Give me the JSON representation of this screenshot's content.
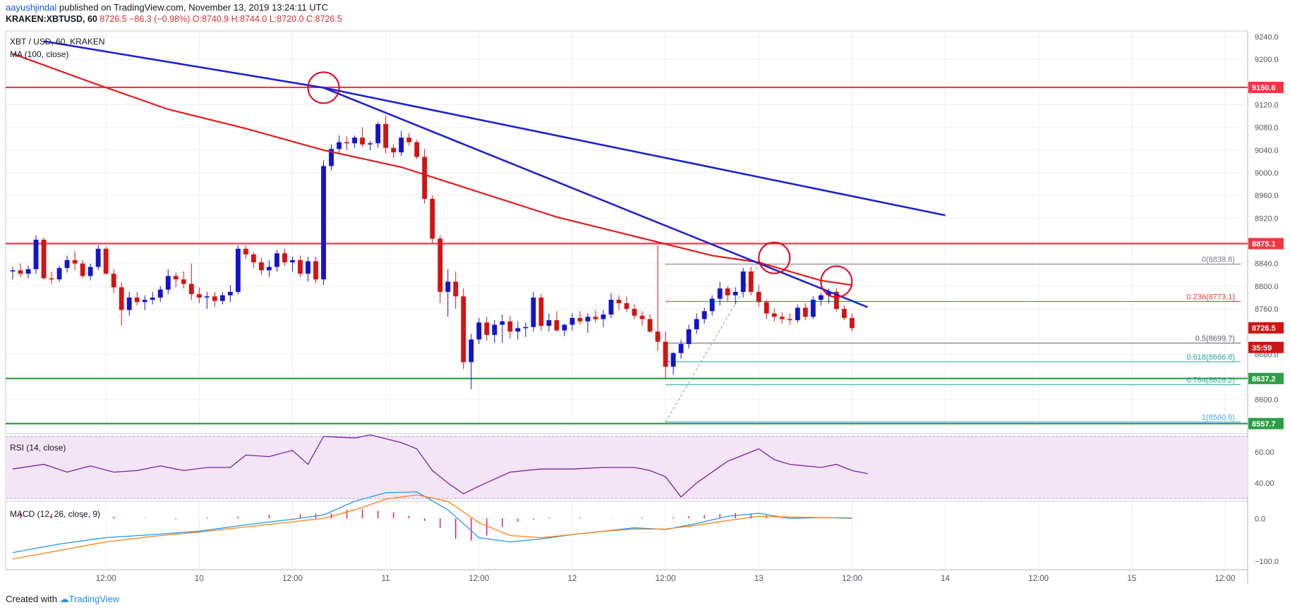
{
  "header": {
    "author": "aayushjindal",
    "published_text": " published on TradingView.com, November 13, 2019 13:24:11 UTC",
    "symbol": "KRAKEN:XBTUSD, 60",
    "last": "8726.5",
    "change": "−86.3 (−0.98%)",
    "ohlc": "O:8740.9 H:8744.0 L:8720.0 C:8726.5"
  },
  "legend": {
    "main": "XBT / USD, 60, KRAKEN",
    "ma": "MA (100, close)",
    "rsi": "RSI (14, close)",
    "macd": "MACD (12, 26, close, 9)"
  },
  "footer": {
    "created": "Created with",
    "brand": "TradingView"
  },
  "colors": {
    "up": "#1414c8",
    "down": "#d11414",
    "ma": "#e31a1c",
    "trend": "#1e22cc",
    "resistance": "#f23645",
    "support": "#2e9e44",
    "rsi": "#7b1fa2",
    "macd": "#2196f3",
    "signal": "#ff7f0e",
    "hist": "#e91e63",
    "fib_line": "#9598a1"
  },
  "chart_data": {
    "type": "candlestick",
    "symbol": "XBT/USD",
    "timeframe": "60",
    "exchange": "KRAKEN",
    "price_axis": {
      "ylim": [
        8540,
        9250
      ],
      "ticks": [
        9240.0,
        9200.0,
        9120.0,
        9080.0,
        9040.0,
        9000.0,
        8960.0,
        8920.0,
        8840.0,
        8800.0,
        8760.0,
        8680.0,
        8600.0
      ]
    },
    "time_axis": {
      "labels": [
        "12:00",
        "10",
        "12:00",
        "11",
        "12:00",
        "12",
        "12:00",
        "13",
        "12:00",
        "14",
        "12:00",
        "15",
        "12:00"
      ],
      "label_bars": [
        12,
        24,
        36,
        48,
        60,
        72,
        84,
        96,
        108,
        120,
        132,
        144,
        156
      ],
      "bar_range": [
        0,
        158
      ]
    },
    "candles": [
      [
        8826,
        8834,
        8812,
        8828
      ],
      [
        8828,
        8840,
        8816,
        8822
      ],
      [
        8822,
        8836,
        8814,
        8830
      ],
      [
        8830,
        8890,
        8822,
        8882
      ],
      [
        8882,
        8886,
        8812,
        8814
      ],
      [
        8814,
        8826,
        8804,
        8812
      ],
      [
        8812,
        8836,
        8808,
        8832
      ],
      [
        8832,
        8854,
        8824,
        8846
      ],
      [
        8846,
        8862,
        8828,
        8840
      ],
      [
        8840,
        8846,
        8814,
        8818
      ],
      [
        8818,
        8840,
        8810,
        8834
      ],
      [
        8834,
        8872,
        8828,
        8866
      ],
      [
        8866,
        8870,
        8820,
        8822
      ],
      [
        8822,
        8830,
        8788,
        8798
      ],
      [
        8798,
        8806,
        8730,
        8758
      ],
      [
        8758,
        8790,
        8748,
        8780
      ],
      [
        8780,
        8790,
        8766,
        8772
      ],
      [
        8772,
        8784,
        8758,
        8776
      ],
      [
        8776,
        8790,
        8768,
        8780
      ],
      [
        8780,
        8800,
        8772,
        8794
      ],
      [
        8794,
        8830,
        8786,
        8818
      ],
      [
        8818,
        8824,
        8798,
        8812
      ],
      [
        8812,
        8826,
        8796,
        8804
      ],
      [
        8804,
        8840,
        8776,
        8786
      ],
      [
        8786,
        8798,
        8770,
        8780
      ],
      [
        8780,
        8790,
        8760,
        8782
      ],
      [
        8782,
        8790,
        8764,
        8774
      ],
      [
        8774,
        8790,
        8768,
        8784
      ],
      [
        8784,
        8802,
        8772,
        8790
      ],
      [
        8790,
        8872,
        8786,
        8866
      ],
      [
        8866,
        8872,
        8848,
        8856
      ],
      [
        8856,
        8860,
        8832,
        8842
      ],
      [
        8842,
        8850,
        8820,
        8828
      ],
      [
        8828,
        8846,
        8816,
        8834
      ],
      [
        8834,
        8864,
        8826,
        8858
      ],
      [
        8858,
        8866,
        8836,
        8842
      ],
      [
        8842,
        8852,
        8826,
        8846
      ],
      [
        8846,
        8854,
        8816,
        8822
      ],
      [
        8822,
        8852,
        8808,
        8844
      ],
      [
        8844,
        8852,
        8806,
        8812
      ],
      [
        8812,
        9022,
        8802,
        9012
      ],
      [
        9012,
        9050,
        9004,
        9042
      ],
      [
        9042,
        9066,
        9034,
        9054
      ],
      [
        9054,
        9064,
        9040,
        9052
      ],
      [
        9052,
        9066,
        9044,
        9062
      ],
      [
        9062,
        9080,
        9046,
        9050
      ],
      [
        9050,
        9056,
        9040,
        9052
      ],
      [
        9052,
        9090,
        9044,
        9086
      ],
      [
        9086,
        9100,
        9034,
        9044
      ],
      [
        9044,
        9050,
        9026,
        9036
      ],
      [
        9036,
        9074,
        9030,
        9062
      ],
      [
        9062,
        9070,
        9048,
        9054
      ],
      [
        9054,
        9058,
        9024,
        9028
      ],
      [
        9028,
        9042,
        8946,
        8954
      ],
      [
        8954,
        8960,
        8876,
        8884
      ],
      [
        8884,
        8890,
        8770,
        8790
      ],
      [
        8790,
        8830,
        8746,
        8808
      ],
      [
        8808,
        8826,
        8760,
        8782
      ],
      [
        8782,
        8796,
        8654,
        8666
      ],
      [
        8666,
        8716,
        8618,
        8706
      ],
      [
        8706,
        8744,
        8698,
        8736
      ],
      [
        8736,
        8746,
        8704,
        8714
      ],
      [
        8714,
        8740,
        8700,
        8732
      ],
      [
        8732,
        8750,
        8700,
        8738
      ],
      [
        8738,
        8748,
        8708,
        8720
      ],
      [
        8720,
        8738,
        8706,
        8726
      ],
      [
        8726,
        8736,
        8710,
        8728
      ],
      [
        8728,
        8790,
        8720,
        8780
      ],
      [
        8780,
        8786,
        8722,
        8730
      ],
      [
        8730,
        8752,
        8720,
        8740
      ],
      [
        8740,
        8756,
        8720,
        8722
      ],
      [
        8722,
        8734,
        8712,
        8732
      ],
      [
        8732,
        8752,
        8722,
        8744
      ],
      [
        8744,
        8756,
        8732,
        8738
      ],
      [
        8738,
        8752,
        8718,
        8746
      ],
      [
        8746,
        8758,
        8736,
        8742
      ],
      [
        8742,
        8758,
        8728,
        8750
      ],
      [
        8750,
        8788,
        8744,
        8776
      ],
      [
        8776,
        8784,
        8758,
        8770
      ],
      [
        8770,
        8782,
        8754,
        8760
      ],
      [
        8760,
        8768,
        8742,
        8748
      ],
      [
        8748,
        8756,
        8730,
        8742
      ],
      [
        8742,
        8750,
        8718,
        8720
      ],
      [
        8720,
        8872,
        8686,
        8702
      ],
      [
        8702,
        8720,
        8636,
        8658
      ],
      [
        8658,
        8684,
        8644,
        8682
      ],
      [
        8682,
        8706,
        8672,
        8698
      ],
      [
        8698,
        8732,
        8690,
        8724
      ],
      [
        8724,
        8752,
        8716,
        8742
      ],
      [
        8742,
        8762,
        8734,
        8756
      ],
      [
        8756,
        8784,
        8748,
        8778
      ],
      [
        8778,
        8808,
        8766,
        8796
      ],
      [
        8796,
        8800,
        8772,
        8784
      ],
      [
        8784,
        8798,
        8768,
        8790
      ],
      [
        8790,
        8832,
        8780,
        8826
      ],
      [
        8826,
        8834,
        8784,
        8790
      ],
      [
        8790,
        8802,
        8764,
        8772
      ],
      [
        8772,
        8776,
        8742,
        8752
      ],
      [
        8752,
        8760,
        8738,
        8746
      ],
      [
        8746,
        8754,
        8734,
        8742
      ],
      [
        8742,
        8752,
        8732,
        8740
      ],
      [
        8740,
        8768,
        8736,
        8762
      ],
      [
        8762,
        8770,
        8740,
        8746
      ],
      [
        8746,
        8782,
        8742,
        8776
      ],
      [
        8776,
        8788,
        8766,
        8784
      ],
      [
        8784,
        8796,
        8770,
        8790
      ],
      [
        8790,
        8796,
        8756,
        8760
      ],
      [
        8760,
        8766,
        8740,
        8744
      ],
      [
        8744,
        8752,
        8720,
        8726
      ]
    ],
    "ma100": [
      [
        0,
        9210
      ],
      [
        10,
        9160
      ],
      [
        20,
        9112
      ],
      [
        30,
        9078
      ],
      [
        40,
        9040
      ],
      [
        50,
        9010
      ],
      [
        60,
        8966
      ],
      [
        70,
        8922
      ],
      [
        80,
        8888
      ],
      [
        90,
        8854
      ],
      [
        96,
        8842
      ],
      [
        104,
        8810
      ],
      [
        108,
        8802
      ]
    ],
    "trendlines": [
      {
        "from": [
          4,
          9232
        ],
        "to": [
          40,
          9150
        ]
      },
      {
        "from": [
          40,
          9150
        ],
        "to": [
          110,
          8763
        ]
      },
      {
        "from": [
          40,
          9150
        ],
        "to": [
          120,
          8925
        ]
      }
    ],
    "horizontal_levels": [
      {
        "price": 9150.6,
        "label": "9150.6",
        "kind": "resistance"
      },
      {
        "price": 8875.1,
        "label": "8875.1",
        "kind": "resistance"
      },
      {
        "price": 8637.2,
        "label": "8637.2",
        "kind": "support"
      },
      {
        "price": 8557.7,
        "label": "8557.7",
        "kind": "support"
      }
    ],
    "price_tags": [
      {
        "price": 8726.5,
        "label": "8726.5",
        "kind": "last"
      },
      {
        "price": 8692.0,
        "label": "35:59",
        "kind": "countdown"
      }
    ],
    "fibonacci": {
      "from_bar": 84,
      "to_bar": 158,
      "levels": [
        {
          "ratio": "0",
          "price": 8838.8,
          "label": "0(8838.8)",
          "color": "#787b86"
        },
        {
          "ratio": "0.236",
          "price": 8773.1,
          "label": "0.236(8773.1)",
          "color": "#e53935"
        },
        {
          "ratio": "0.5",
          "price": 8699.7,
          "label": "0.5(8699.7)",
          "color": "#5d606b"
        },
        {
          "ratio": "0.618",
          "price": 8666.8,
          "label": "0.618(8666.8)",
          "color": "#26a69a"
        },
        {
          "ratio": "0.764",
          "price": 8626.2,
          "label": "0.764(8626.2)",
          "color": "#26a69a"
        },
        {
          "ratio": "1",
          "price": 8560.5,
          "label": "1(8560.5)",
          "color": "#42a5f5"
        }
      ]
    },
    "swing_line": {
      "from": [
        84,
        8560.5
      ],
      "to": [
        96,
        8838.8
      ]
    },
    "circles": [
      [
        40,
        9150
      ],
      [
        98,
        8850
      ],
      [
        106,
        8808
      ]
    ],
    "rsi": {
      "ylim": [
        30,
        70
      ],
      "ticks": [
        60.0,
        40.0
      ],
      "levels": [
        70,
        30
      ],
      "points": [
        [
          0,
          49
        ],
        [
          4,
          52
        ],
        [
          7,
          47
        ],
        [
          10,
          51
        ],
        [
          13,
          47
        ],
        [
          16,
          48
        ],
        [
          19,
          51
        ],
        [
          22,
          48
        ],
        [
          25,
          50
        ],
        [
          28,
          50
        ],
        [
          30,
          58
        ],
        [
          33,
          57
        ],
        [
          36,
          61
        ],
        [
          38,
          52
        ],
        [
          40,
          70
        ],
        [
          44,
          69
        ],
        [
          46,
          71
        ],
        [
          50,
          66
        ],
        [
          52,
          62
        ],
        [
          54,
          48
        ],
        [
          56,
          40
        ],
        [
          58,
          33
        ],
        [
          60,
          38
        ],
        [
          64,
          47
        ],
        [
          68,
          49
        ],
        [
          72,
          49
        ],
        [
          76,
          50
        ],
        [
          80,
          50
        ],
        [
          82,
          48
        ],
        [
          84,
          44
        ],
        [
          86,
          31
        ],
        [
          88,
          40
        ],
        [
          92,
          54
        ],
        [
          94,
          58
        ],
        [
          96,
          62
        ],
        [
          98,
          55
        ],
        [
          100,
          52
        ],
        [
          104,
          50
        ],
        [
          106,
          52
        ],
        [
          108,
          48
        ],
        [
          110,
          46
        ]
      ]
    },
    "macd": {
      "ylim": [
        -120,
        40
      ],
      "ticks": [
        0.0,
        -100.0
      ],
      "macd": [
        [
          0,
          -80
        ],
        [
          6,
          -60
        ],
        [
          12,
          -45
        ],
        [
          18,
          -38
        ],
        [
          24,
          -30
        ],
        [
          30,
          -15
        ],
        [
          36,
          -2
        ],
        [
          40,
          8
        ],
        [
          44,
          40
        ],
        [
          48,
          60
        ],
        [
          52,
          62
        ],
        [
          56,
          20
        ],
        [
          60,
          -45
        ],
        [
          64,
          -55
        ],
        [
          68,
          -48
        ],
        [
          72,
          -38
        ],
        [
          76,
          -30
        ],
        [
          80,
          -22
        ],
        [
          84,
          -26
        ],
        [
          88,
          -12
        ],
        [
          92,
          5
        ],
        [
          96,
          12
        ],
        [
          100,
          0
        ],
        [
          104,
          2
        ],
        [
          108,
          0
        ]
      ],
      "signal": [
        [
          0,
          -95
        ],
        [
          6,
          -75
        ],
        [
          12,
          -55
        ],
        [
          18,
          -42
        ],
        [
          24,
          -32
        ],
        [
          30,
          -20
        ],
        [
          36,
          -8
        ],
        [
          40,
          0
        ],
        [
          44,
          20
        ],
        [
          48,
          45
        ],
        [
          52,
          55
        ],
        [
          56,
          40
        ],
        [
          60,
          -10
        ],
        [
          64,
          -40
        ],
        [
          68,
          -45
        ],
        [
          72,
          -38
        ],
        [
          76,
          -30
        ],
        [
          80,
          -25
        ],
        [
          84,
          -25
        ],
        [
          88,
          -16
        ],
        [
          92,
          -5
        ],
        [
          96,
          5
        ],
        [
          100,
          3
        ],
        [
          104,
          2
        ],
        [
          108,
          1
        ]
      ],
      "histogram": [
        [
          1,
          12
        ],
        [
          5,
          10
        ],
        [
          9,
          6
        ],
        [
          13,
          4
        ],
        [
          17,
          1
        ],
        [
          21,
          -2
        ],
        [
          25,
          2
        ],
        [
          29,
          4
        ],
        [
          33,
          8
        ],
        [
          37,
          10
        ],
        [
          39,
          11
        ],
        [
          41,
          12
        ],
        [
          43,
          20
        ],
        [
          45,
          22
        ],
        [
          47,
          18
        ],
        [
          49,
          14
        ],
        [
          51,
          6
        ],
        [
          53,
          -6
        ],
        [
          55,
          -22
        ],
        [
          57,
          -48
        ],
        [
          59,
          -52
        ],
        [
          61,
          -40
        ],
        [
          63,
          -20
        ],
        [
          65,
          -8
        ],
        [
          67,
          -3
        ],
        [
          69,
          2
        ],
        [
          73,
          2
        ],
        [
          77,
          1
        ],
        [
          81,
          2
        ],
        [
          85,
          3
        ],
        [
          87,
          5
        ],
        [
          89,
          8
        ],
        [
          91,
          10
        ],
        [
          93,
          12
        ],
        [
          95,
          10
        ],
        [
          97,
          7
        ],
        [
          99,
          4
        ],
        [
          101,
          2
        ],
        [
          103,
          1
        ],
        [
          105,
          1
        ],
        [
          107,
          1
        ],
        [
          109,
          0
        ]
      ]
    }
  }
}
